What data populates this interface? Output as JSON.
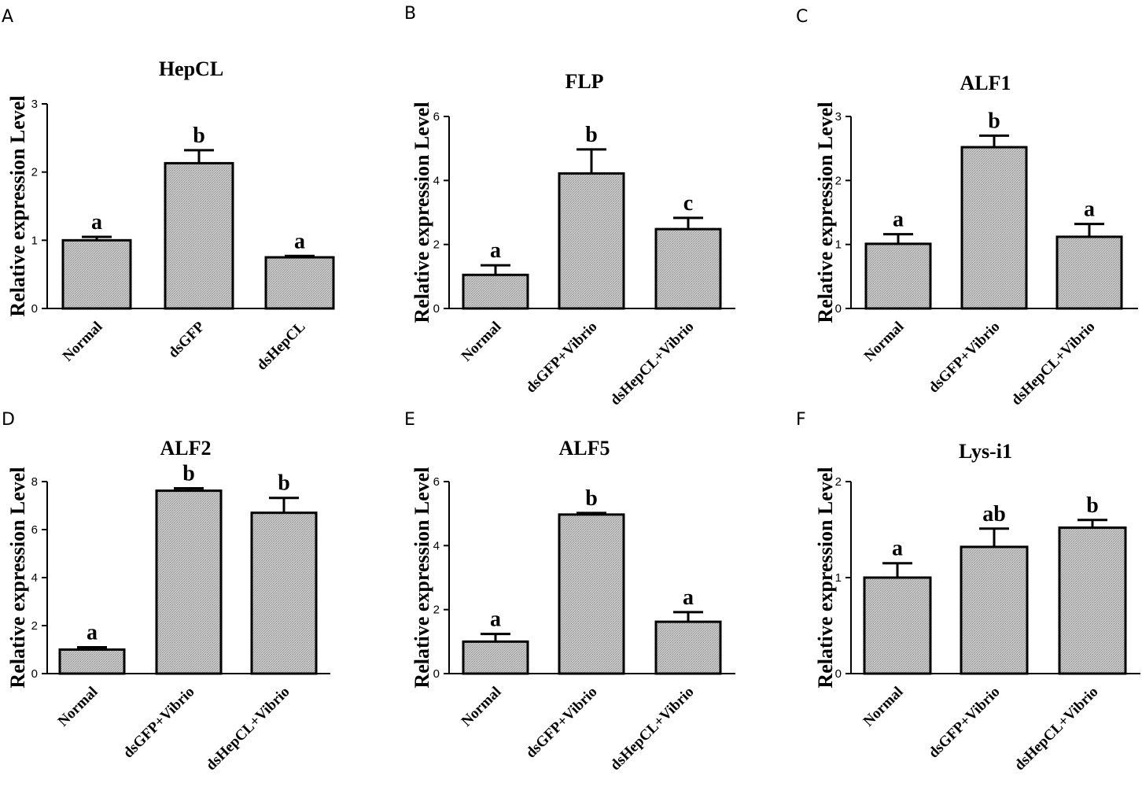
{
  "chart_data": [
    {
      "panel": "A",
      "type": "bar",
      "title": "HepCL",
      "xlabel": "",
      "ylabel": "Relative expression Level",
      "categories": [
        "Normal",
        "dsGFP",
        "dsHepCL"
      ],
      "values": [
        1.0,
        2.13,
        0.75
      ],
      "errors": [
        0.05,
        0.19,
        0.02
      ],
      "significance": [
        "a",
        "b",
        "a"
      ],
      "ylim": [
        0,
        3
      ],
      "yticks": [
        0,
        1,
        2,
        3
      ]
    },
    {
      "panel": "B",
      "type": "bar",
      "title": "FLP",
      "xlabel": "",
      "ylabel": "Relative expression Level",
      "categories": [
        "Normal",
        "dsGFP+Vibrio",
        "dsHepCL+Vibrio"
      ],
      "values": [
        1.05,
        4.22,
        2.48
      ],
      "errors": [
        0.3,
        0.75,
        0.35
      ],
      "significance": [
        "a",
        "b",
        "c"
      ],
      "ylim": [
        0,
        6
      ],
      "yticks": [
        0,
        2,
        4,
        6
      ]
    },
    {
      "panel": "C",
      "type": "bar",
      "title": "ALF1",
      "xlabel": "",
      "ylabel": "Relative expression Level",
      "categories": [
        "Normal",
        "dsGFP+Vibrio",
        "dsHepCL+Vibrio"
      ],
      "values": [
        1.01,
        2.52,
        1.12
      ],
      "errors": [
        0.15,
        0.18,
        0.2
      ],
      "significance": [
        "a",
        "b",
        "a"
      ],
      "ylim": [
        0,
        3
      ],
      "yticks": [
        0,
        1,
        2,
        3
      ]
    },
    {
      "panel": "D",
      "type": "bar",
      "title": "ALF2",
      "xlabel": "",
      "ylabel": "Relative expression Level",
      "categories": [
        "Normal",
        "dsGFP+Vibrio",
        "dsHepCL+Vibrio"
      ],
      "values": [
        1.0,
        7.62,
        6.7
      ],
      "errors": [
        0.1,
        0.1,
        0.62
      ],
      "significance": [
        "a",
        "b",
        "b"
      ],
      "ylim": [
        0,
        8
      ],
      "yticks": [
        0,
        2,
        4,
        6,
        8
      ]
    },
    {
      "panel": "E",
      "type": "bar",
      "title": "ALF5",
      "xlabel": "",
      "ylabel": "Relative expression Level",
      "categories": [
        "Normal",
        "dsGFP+Vibrio",
        "dsHepCL+Vibrio"
      ],
      "values": [
        1.0,
        4.97,
        1.62
      ],
      "errors": [
        0.24,
        0.05,
        0.3
      ],
      "significance": [
        "a",
        "b",
        "a"
      ],
      "ylim": [
        0,
        6
      ],
      "yticks": [
        0,
        2,
        4,
        6
      ]
    },
    {
      "panel": "F",
      "type": "bar",
      "title": "Lys-i1",
      "xlabel": "",
      "ylabel": "Relative expression Level",
      "categories": [
        "Normal",
        "dsGFP+Vibrio",
        "dsHepCL+Vibrio"
      ],
      "values": [
        1.0,
        1.32,
        1.52
      ],
      "errors": [
        0.15,
        0.19,
        0.08
      ],
      "significance": [
        "a",
        "ab",
        "b"
      ],
      "ylim": [
        0,
        2
      ],
      "yticks": [
        0,
        1,
        2
      ]
    }
  ],
  "style": {
    "bar_fill": "#bdbdbd",
    "stroke": "#000000",
    "background": "#ffffff"
  }
}
